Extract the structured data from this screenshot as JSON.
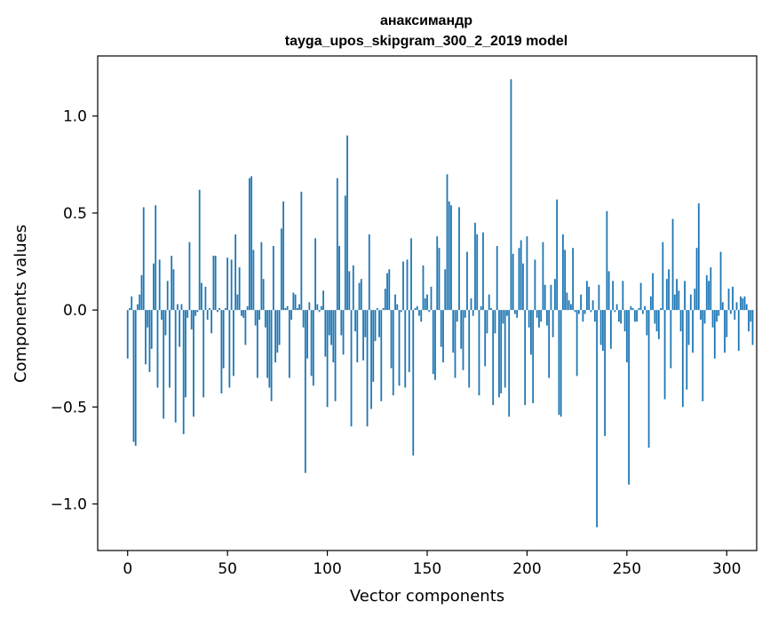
{
  "chart_data": {
    "type": "bar",
    "title_line1": "анаксимандр",
    "title_line2": "tayga_upos_skipgram_300_2_2019 model",
    "xlabel": "Vector components",
    "ylabel": "Components values",
    "xlim": [
      -15,
      315
    ],
    "ylim": [
      -1.24,
      1.31
    ],
    "xticks": [
      0,
      50,
      100,
      150,
      200,
      250,
      300
    ],
    "xtick_labels": [
      "0",
      "50",
      "100",
      "150",
      "200",
      "250",
      "300"
    ],
    "yticks": [
      -1.0,
      -0.5,
      0.0,
      0.5,
      1.0
    ],
    "ytick_labels": [
      "−1.0",
      "−0.5",
      "0.0",
      "0.5",
      "1.0"
    ],
    "bar_color": "#1f77b4",
    "values": [
      -0.25,
      0.01,
      0.07,
      -0.68,
      -0.7,
      0.03,
      0.08,
      0.18,
      0.53,
      -0.28,
      -0.09,
      -0.32,
      -0.2,
      0.24,
      0.54,
      -0.4,
      0.26,
      -0.05,
      -0.56,
      -0.13,
      0.15,
      -0.4,
      0.28,
      0.21,
      -0.58,
      0.03,
      -0.19,
      0.03,
      -0.64,
      -0.45,
      -0.04,
      0.35,
      -0.1,
      -0.55,
      -0.03,
      -0.01,
      0.62,
      0.14,
      -0.45,
      0.12,
      -0.05,
      0.01,
      -0.12,
      0.28,
      0.28,
      -0.01,
      0.01,
      -0.43,
      -0.3,
      0.01,
      0.27,
      -0.4,
      0.26,
      -0.34,
      0.39,
      0.08,
      0.22,
      -0.03,
      -0.04,
      -0.18,
      0.02,
      0.68,
      0.69,
      0.31,
      -0.08,
      -0.35,
      -0.05,
      0.35,
      0.16,
      -0.09,
      -0.35,
      -0.4,
      -0.47,
      0.33,
      -0.27,
      -0.22,
      -0.18,
      0.42,
      0.56,
      0.01,
      0.02,
      -0.35,
      -0.05,
      0.09,
      0.08,
      0.01,
      0.03,
      0.61,
      -0.09,
      -0.84,
      -0.25,
      0.04,
      -0.34,
      -0.39,
      0.37,
      0.03,
      -0.01,
      0.02,
      0.1,
      -0.24,
      -0.5,
      -0.13,
      -0.18,
      -0.27,
      -0.47,
      0.68,
      0.33,
      -0.13,
      -0.23,
      0.59,
      0.9,
      0.2,
      -0.6,
      0.23,
      -0.11,
      -0.27,
      0.14,
      0.16,
      -0.26,
      -0.14,
      -0.6,
      0.39,
      -0.51,
      -0.37,
      -0.16,
      0.01,
      -0.14,
      -0.47,
      0.01,
      0.11,
      0.19,
      0.21,
      -0.3,
      -0.44,
      0.08,
      0.03,
      -0.39,
      -0.01,
      0.25,
      -0.4,
      0.26,
      -0.32,
      0.37,
      -0.75,
      0.01,
      0.02,
      -0.03,
      -0.06,
      0.23,
      0.06,
      0.08,
      -0.01,
      0.12,
      -0.33,
      -0.36,
      0.38,
      0.32,
      -0.19,
      -0.27,
      0.21,
      0.7,
      0.56,
      0.54,
      -0.22,
      -0.35,
      -0.06,
      0.53,
      -0.2,
      -0.31,
      -0.04,
      0.3,
      -0.4,
      0.06,
      -0.03,
      0.45,
      0.39,
      -0.44,
      0.02,
      0.4,
      -0.29,
      -0.12,
      0.08,
      0.01,
      -0.49,
      -0.12,
      0.33,
      -0.45,
      -0.43,
      -0.07,
      -0.4,
      -0.03,
      -0.55,
      1.19,
      0.29,
      -0.02,
      -0.04,
      0.32,
      0.36,
      0.24,
      -0.49,
      0.38,
      -0.09,
      -0.23,
      -0.48,
      0.26,
      -0.04,
      -0.09,
      -0.06,
      0.35,
      0.13,
      -0.08,
      -0.35,
      0.13,
      -0.14,
      0.16,
      0.57,
      -0.54,
      -0.55,
      0.39,
      0.31,
      0.09,
      0.05,
      0.03,
      0.32,
      -0.01,
      -0.34,
      -0.02,
      0.08,
      -0.06,
      -0.02,
      0.15,
      0.12,
      -0.01,
      0.05,
      -0.06,
      -1.12,
      0.13,
      -0.18,
      -0.21,
      -0.65,
      0.51,
      0.2,
      -0.2,
      0.15,
      -0.01,
      0.03,
      -0.06,
      -0.07,
      0.15,
      -0.11,
      -0.27,
      -0.9,
      0.02,
      0.01,
      -0.06,
      -0.06,
      0.01,
      0.14,
      -0.02,
      0.02,
      -0.13,
      -0.71,
      0.07,
      0.19,
      -0.07,
      -0.11,
      -0.15,
      0.01,
      0.35,
      -0.46,
      0.16,
      0.21,
      -0.3,
      0.47,
      0.08,
      0.16,
      0.1,
      -0.11,
      -0.5,
      0.15,
      -0.41,
      -0.18,
      0.08,
      -0.22,
      0.11,
      0.32,
      0.55,
      -0.05,
      -0.47,
      -0.07,
      0.18,
      0.15,
      0.22,
      -0.09,
      -0.25,
      -0.06,
      -0.03,
      0.3,
      0.04,
      -0.22,
      -0.14,
      0.11,
      -0.02,
      0.12,
      -0.05,
      0.04,
      -0.21,
      0.07,
      0.06,
      0.07,
      0.03,
      -0.11,
      -0.06,
      -0.18
    ]
  }
}
